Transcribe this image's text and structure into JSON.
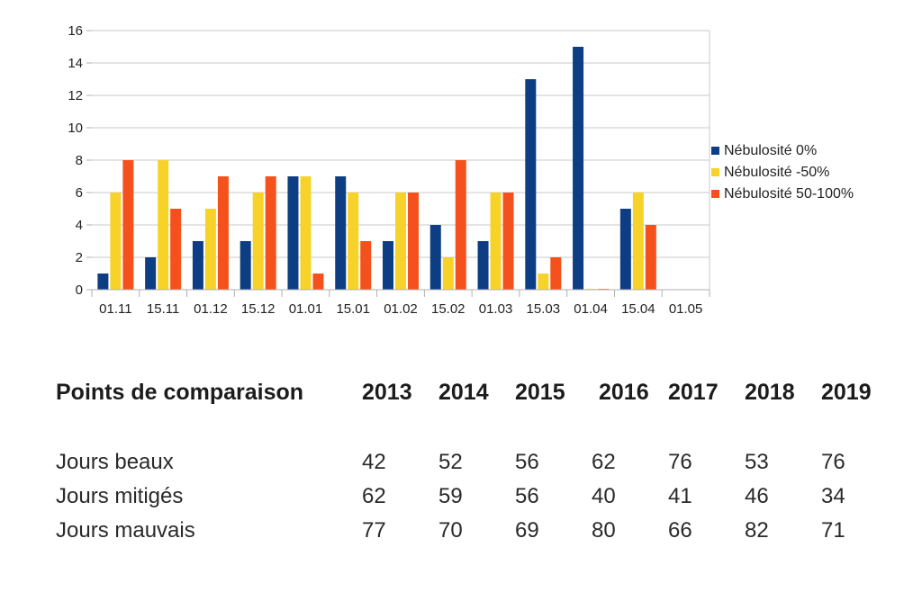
{
  "chart_data": {
    "type": "bar",
    "categories": [
      "01.11",
      "15.11",
      "01.12",
      "15.12",
      "01.01",
      "15.01",
      "01.02",
      "15.02",
      "01.03",
      "15.03",
      "01.04",
      "15.04",
      "01.05"
    ],
    "series": [
      {
        "name": "Nébulosité 0%",
        "color": "#0d3e83",
        "values": [
          1,
          2,
          3,
          3,
          7,
          7,
          3,
          4,
          3,
          13,
          15,
          5,
          null
        ]
      },
      {
        "name": "Nébulosité -50%",
        "color": "#f7d32a",
        "values": [
          6,
          8,
          5,
          6,
          7,
          6,
          6,
          2,
          6,
          1,
          0.05,
          6,
          null
        ]
      },
      {
        "name": "Nébulosité 50-100%",
        "color": "#f5511d",
        "values": [
          8,
          5,
          7,
          7,
          1,
          3,
          6,
          8,
          6,
          2,
          0.05,
          4,
          null
        ]
      }
    ],
    "yticks": [
      "0",
      "2",
      "4",
      "6",
      "8",
      "10",
      "12",
      "14",
      "16"
    ],
    "ylim": [
      0,
      16
    ],
    "grid": true,
    "legend": "right"
  },
  "table": {
    "header": "Points de comparaison",
    "years": [
      "2013",
      "2014",
      "2015",
      "2016",
      "2017",
      "2018",
      "2019"
    ],
    "rows": [
      {
        "label": "Jours beaux",
        "values": [
          "42",
          "52",
          "56",
          "62",
          "76",
          "53",
          "76"
        ]
      },
      {
        "label": "Jours mitigés",
        "values": [
          "62",
          "59",
          "56",
          "40",
          "41",
          "46",
          "34"
        ]
      },
      {
        "label": "Jours mauvais",
        "values": [
          "77",
          "70",
          "69",
          "80",
          "66",
          "82",
          "71"
        ]
      }
    ]
  }
}
